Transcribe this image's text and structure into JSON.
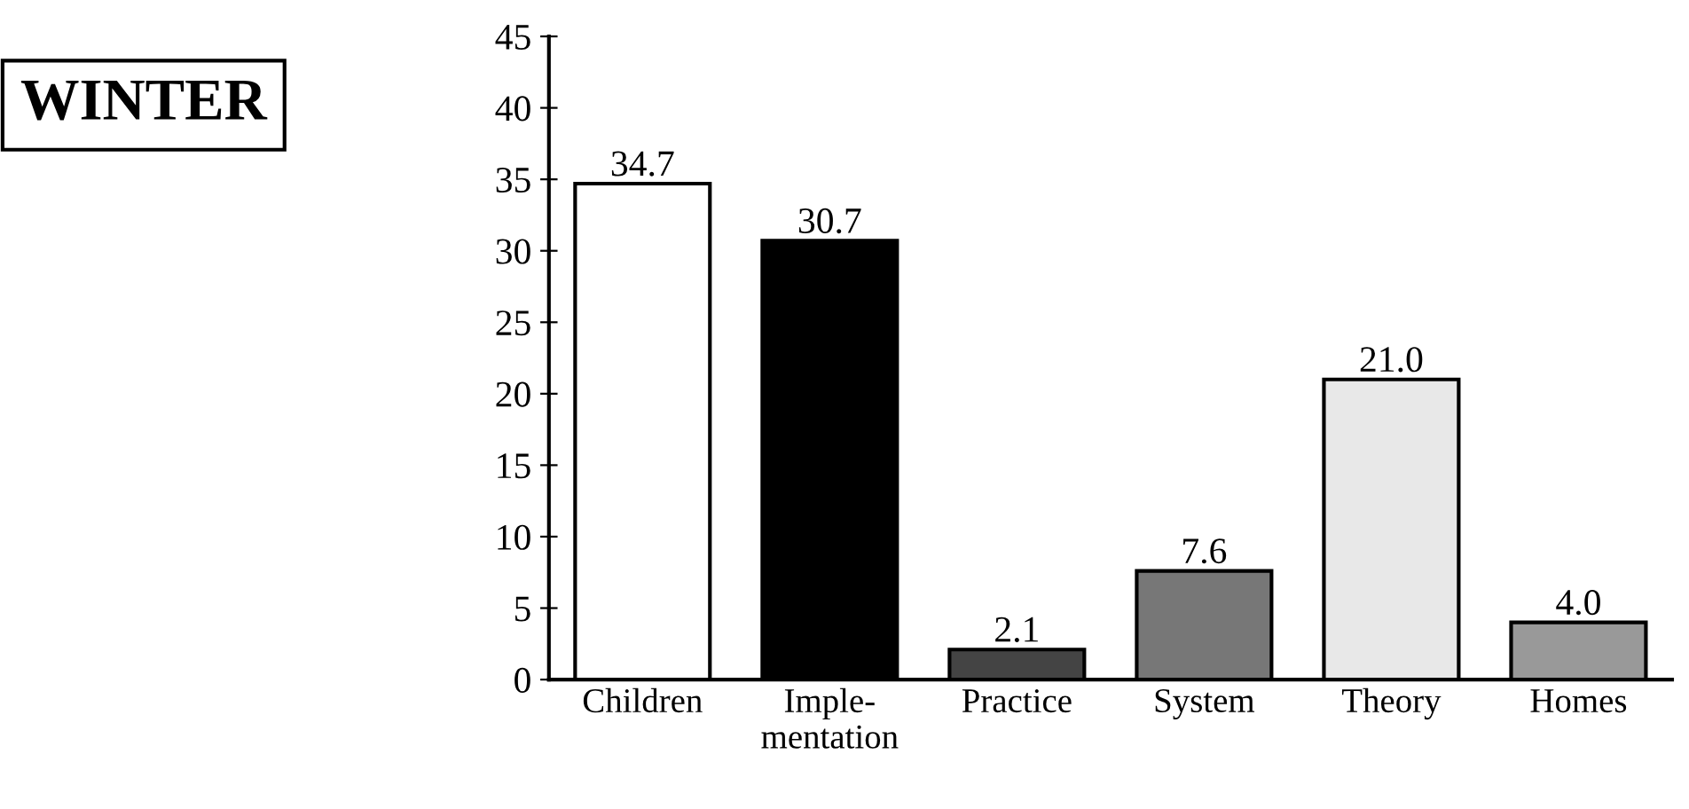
{
  "chart_data": {
    "type": "bar",
    "title": "WINTER",
    "categories": [
      "Children",
      "Imple-\nmentation",
      "Practice",
      "System",
      "Theory",
      "Homes"
    ],
    "values": [
      34.7,
      30.7,
      2.1,
      7.6,
      21.0,
      4.0
    ],
    "value_labels": [
      "34.7",
      "30.7",
      "2.1",
      "7.6",
      "21.0",
      "4.0"
    ],
    "colors": [
      "#ffffff",
      "#000000",
      "#444444",
      "#777777",
      "#e8e8e8",
      "#999999"
    ],
    "ylim": [
      0,
      45
    ],
    "yticks": [
      0,
      5,
      10,
      15,
      20,
      25,
      30,
      35,
      40,
      45
    ],
    "grid": false
  }
}
